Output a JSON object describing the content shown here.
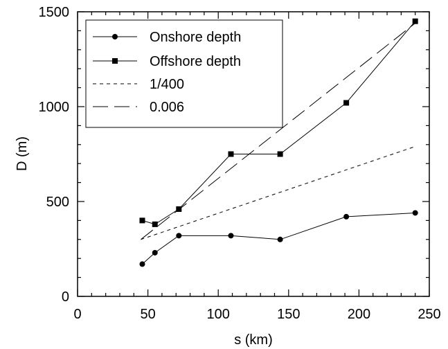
{
  "chart_data": {
    "type": "line",
    "title": "",
    "xlabel": "s (km)",
    "ylabel": "D (m)",
    "xlim": [
      0,
      250
    ],
    "ylim": [
      0,
      1500
    ],
    "x_ticks": [
      0,
      50,
      100,
      150,
      200,
      250
    ],
    "y_ticks": [
      0,
      500,
      1000,
      1500
    ],
    "x_tick_labels": [
      "0",
      "50",
      "100",
      "150",
      "200",
      "250"
    ],
    "y_tick_labels": [
      "0",
      "500",
      "1000",
      "1500"
    ],
    "grid": false,
    "legend_position": "top-left",
    "series": [
      {
        "name": "Onshore depth",
        "style": "solid",
        "marker": "circle",
        "color": "#000000",
        "x": [
          46,
          55,
          72,
          109,
          144,
          191,
          240
        ],
        "y": [
          170,
          230,
          320,
          320,
          300,
          420,
          440
        ]
      },
      {
        "name": "Offshore depth",
        "style": "solid",
        "marker": "square",
        "color": "#000000",
        "x": [
          46,
          55,
          72,
          109,
          144,
          191,
          240
        ],
        "y": [
          400,
          380,
          460,
          750,
          750,
          1020,
          1450
        ]
      },
      {
        "name": "1/400",
        "style": "short-dash",
        "marker": "none",
        "color": "#000000",
        "x": [
          45,
          240
        ],
        "y": [
          300,
          790
        ]
      },
      {
        "name": "0.006",
        "style": "long-dash",
        "marker": "none",
        "color": "#000000",
        "x": [
          45,
          240
        ],
        "y": [
          300,
          1440
        ]
      }
    ]
  }
}
